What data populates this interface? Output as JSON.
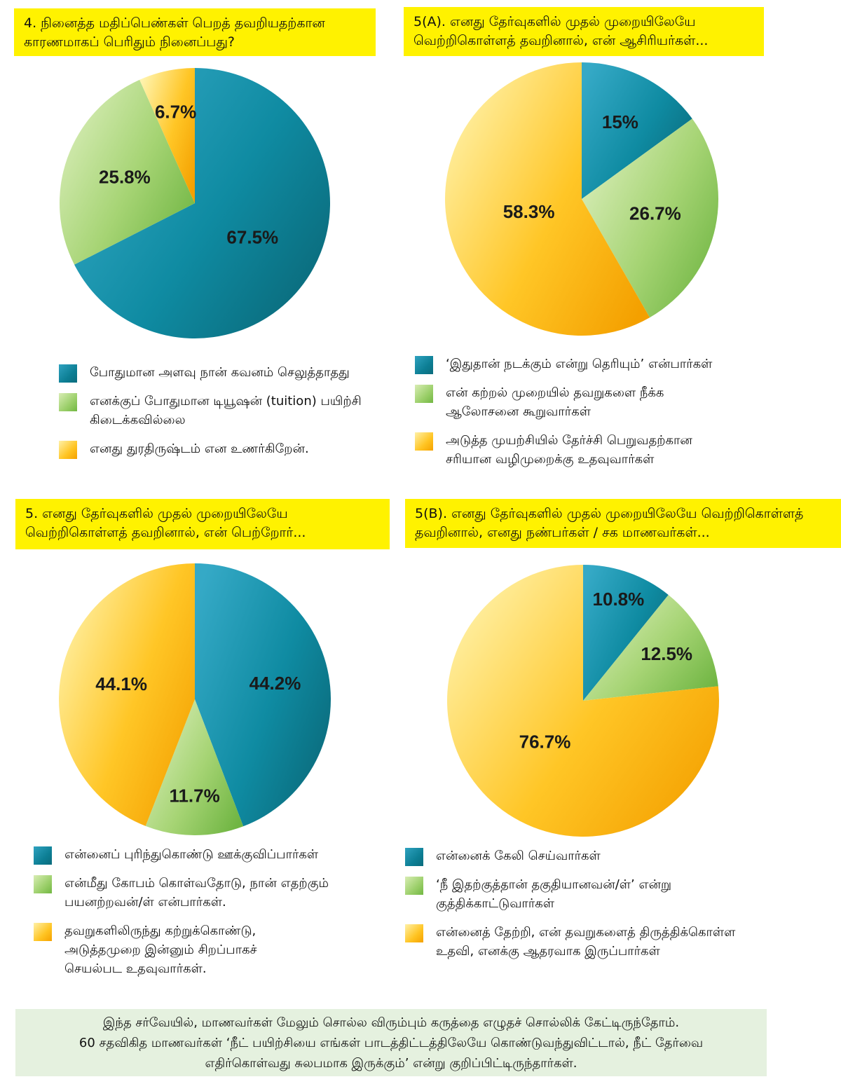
{
  "colors": {
    "teal": "#108fa8",
    "green": "#a3d172",
    "orange": "#ffc21f",
    "question_bg": "#fff200",
    "footer_bg": "#e5f1df"
  },
  "panels": [
    {
      "question": [
        "4. நினைத்த மதிப்பெண்கள் பெறத் தவறியதற்கான",
        "காரணமாகப் பெரிதும் நினைப்பது?"
      ],
      "legend": [
        [
          "போதுமான அளவு நான் கவனம் செலுத்தாதது"
        ],
        [
          "எனக்குப் போதுமான டியூஷன் (tuition) பயிற்சி",
          "கிடைக்கவில்லை"
        ],
        [
          "எனது துரதிருஷ்டம் என உணர்கிறேன்."
        ]
      ]
    },
    {
      "question": [
        "5(A). எனது தேர்வுகளில் முதல் முறையிலேயே",
        "வெற்றிகொள்ளத் தவறினால், என் ஆசிரியர்கள்..."
      ],
      "legend": [
        [
          "‘இதுதான் நடக்கும் என்று தெரியும்’ என்பார்கள்"
        ],
        [
          "என் கற்றல் முறையில் தவறுகளை நீக்க",
          "ஆலோசனை கூறுவார்கள்"
        ],
        [
          "அடுத்த முயற்சியில் தேர்ச்சி பெறுவதற்கான",
          "சரியான வழிமுறைக்கு உதவுவார்கள்"
        ]
      ]
    },
    {
      "question": [
        "5. எனது தேர்வுகளில் முதல் முறையிலேயே",
        "வெற்றிகொள்ளத் தவறினால், என் பெற்றோர்..."
      ],
      "legend": [
        [
          "என்னைப் புரிந்துகொண்டு ஊக்குவிப்பார்கள்"
        ],
        [
          "என்மீது கோபம் கொள்வதோடு, நான் எதற்கும்",
          "பயனற்றவன்/ள் என்பார்கள்."
        ],
        [
          "தவறுகளிலிருந்து கற்றுக்கொண்டு,",
          "அடுத்தமுறை இன்னும் சிறப்பாகச்",
          "செயல்பட உதவுவார்கள்."
        ]
      ]
    },
    {
      "question": [
        "5(B). எனது தேர்வுகளில் முதல் முறையிலேயே வெற்றிகொள்ளத்",
        "தவறினால், எனது நண்பர்கள் / சக மாணவர்கள்..."
      ],
      "legend": [
        [
          "என்னைக் கேலி செய்வார்கள்"
        ],
        [
          "‘நீ இதற்குத்தான் தகுதியானவன்/ள்’ என்று",
          "குத்திக்காட்டுவார்கள்"
        ],
        [
          "என்னைத் தேற்றி, என் தவறுகளைத் திருத்திக்கொள்ள",
          "உதவி, எனக்கு ஆதரவாக இருப்பார்கள்"
        ]
      ]
    }
  ],
  "chart_data": [
    {
      "type": "pie",
      "categories": [
        "போதுமான அளவு நான் கவனம் செலுத்தாதது",
        "எனக்குப் போதுமான டியூஷன் (tuition) பயிற்சி கிடைக்கவில்லை",
        "எனது துரதிருஷ்டம் என உணர்கிறேன்."
      ],
      "values": [
        67.5,
        25.8,
        6.7
      ],
      "labels": [
        "67.5%",
        "25.8%",
        "6.7%"
      ],
      "colors": [
        "teal",
        "green",
        "orange"
      ]
    },
    {
      "type": "pie",
      "categories": [
        "‘இதுதான் நடக்கும் என்று தெரியும்’ என்பார்கள்",
        "என் கற்றல் முறையில் தவறுகளை நீக்க ஆலோசனை கூறுவார்கள்",
        "அடுத்த முயற்சியில் தேர்ச்சி பெறுவதற்கான சரியான வழிமுறைக்கு உதவுவார்கள்"
      ],
      "values": [
        15,
        26.7,
        58.3
      ],
      "labels": [
        "15%",
        "26.7%",
        "58.3%"
      ],
      "colors": [
        "teal",
        "green",
        "orange"
      ]
    },
    {
      "type": "pie",
      "categories": [
        "என்னைப் புரிந்துகொண்டு ஊக்குவிப்பார்கள்",
        "என்மீது கோபம் கொள்வதோடு, நான் எதற்கும் பயனற்றவன்/ள் என்பார்கள்.",
        "தவறுகளிலிருந்து கற்றுக்கொண்டு, அடுத்தமுறை இன்னும் சிறப்பாகச் செயல்பட உதவுவார்கள்."
      ],
      "values": [
        44.2,
        11.7,
        44.1
      ],
      "labels": [
        "44.2%",
        "11.7%",
        "44.1%"
      ],
      "colors": [
        "teal",
        "green",
        "orange"
      ]
    },
    {
      "type": "pie",
      "categories": [
        "என்னைக் கேலி செய்வார்கள்",
        "‘நீ இதற்குத்தான் தகுதியானவன்/ள்’ என்று குத்திக்காட்டுவார்கள்",
        "என்னைத் தேற்றி, என் தவறுகளைத் திருத்திக்கொள்ள உதவி, எனக்கு ஆதரவாக இருப்பார்கள்"
      ],
      "values": [
        10.8,
        12.5,
        76.7
      ],
      "labels": [
        "10.8%",
        "12.5%",
        "76.7%"
      ],
      "colors": [
        "teal",
        "green",
        "orange"
      ]
    }
  ],
  "footer": [
    "இந்த சர்வேயில், மாணவர்கள் மேலும் சொல்ல விரும்பும் கருத்தை எழுதச் சொல்லிக் கேட்டிருந்தோம்.",
    "60 சதவிகித மாணவர்கள் ‘நீட் பயிற்சியை எங்கள் பாடத்திட்டத்திலேயே கொண்டுவந்துவிட்டால், நீட் தேர்வை",
    "எதிர்கொள்வது சுலபமாக இருக்கும்’ என்று குறிப்பிட்டிருந்தார்கள்."
  ]
}
